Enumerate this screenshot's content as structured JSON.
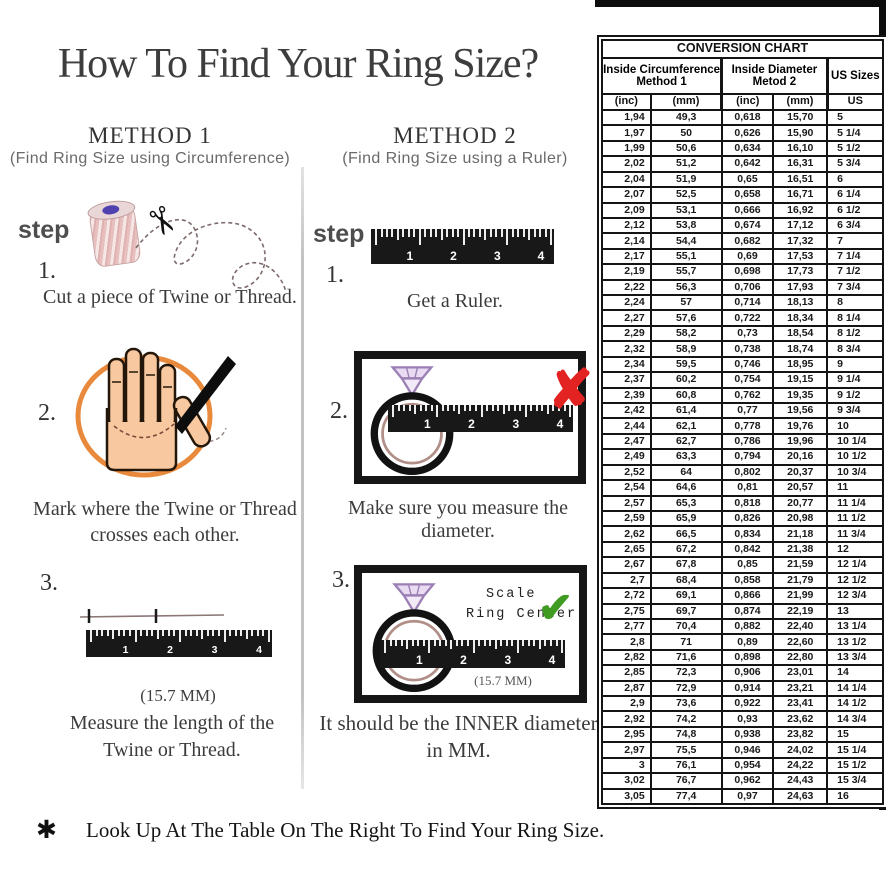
{
  "title": "How To Find Your Ring Size?",
  "method1": {
    "heading": "METHOD 1",
    "subheading": "(Find Ring Size using Circumference)",
    "step_label": "step",
    "step1_num": "1.",
    "step1_caption": "Cut a piece of  Twine or Thread.",
    "step2_num": "2.",
    "step2_caption_line1": "Mark where the Twine or Thread",
    "step2_caption_line2": "crosses each other.",
    "step3_num": "3.",
    "step3_measure": "(15.7 MM)",
    "step3_caption_line1": "Measure the length of the",
    "step3_caption_line2": "Twine or Thread."
  },
  "method2": {
    "heading": "METHOD 2",
    "subheading": "(Find Ring Size using a Ruler)",
    "step_label": "step",
    "step1_num": "1.",
    "step1_caption": "Get a Ruler.",
    "step2_num": "2.",
    "step2_caption": "Make sure you measure the diameter.",
    "step3_num": "3.",
    "step3_scale_line1": "Scale",
    "step3_scale_line2": "Ring Center",
    "step3_measure": "(15.7 MM)",
    "step3_caption_line1": "It should be the INNER diameter",
    "step3_caption_line2": "in MM."
  },
  "icons": {
    "scissors": "✂",
    "x_mark": "✘",
    "check_mark": "✔"
  },
  "ruler_numbers": [
    "1",
    "2",
    "3",
    "4"
  ],
  "footnote": {
    "bullet": "✱",
    "text": "Look Up At The Table On The Right To Find Your Ring Size."
  },
  "colors": {
    "accent_red": "#c0332e",
    "text_black": "#1a1a1a",
    "x_red": "#e32222",
    "check_green": "#3f9b22",
    "hand_skin": "#f8c9a0",
    "circle_orange": "#e8893c",
    "ring_inner": "#b18f88",
    "diamond_lavender": "#e9dcf2"
  },
  "conversion_chart": {
    "title": "CONVERSION CHART",
    "col_groups": [
      {
        "line1": "Inside Circumference",
        "line2": "Method 1"
      },
      {
        "line1": "Inside Diameter",
        "line2": "Metod 2"
      },
      {
        "line1": "US Sizes",
        "line2": ""
      }
    ],
    "sub_headers": [
      "(inc)",
      "(mm)",
      "(inc)",
      "(mm)",
      "US"
    ],
    "rows": [
      [
        "1,94",
        "49,3",
        "0,618",
        "15,70",
        "5"
      ],
      [
        "1,97",
        "50",
        "0,626",
        "15,90",
        "5 1/4"
      ],
      [
        "1,99",
        "50,6",
        "0,634",
        "16,10",
        "5 1/2"
      ],
      [
        "2,02",
        "51,2",
        "0,642",
        "16,31",
        "5 3/4"
      ],
      [
        "2,04",
        "51,9",
        "0,65",
        "16,51",
        "6"
      ],
      [
        "2,07",
        "52,5",
        "0,658",
        "16,71",
        "6 1/4"
      ],
      [
        "2,09",
        "53,1",
        "0,666",
        "16,92",
        "6 1/2"
      ],
      [
        "2,12",
        "53,8",
        "0,674",
        "17,12",
        "6 3/4"
      ],
      [
        "2,14",
        "54,4",
        "0,682",
        "17,32",
        "7"
      ],
      [
        "2,17",
        "55,1",
        "0,69",
        "17,53",
        "7 1/4"
      ],
      [
        "2,19",
        "55,7",
        "0,698",
        "17,73",
        "7 1/2"
      ],
      [
        "2,22",
        "56,3",
        "0,706",
        "17,93",
        "7 3/4"
      ],
      [
        "2,24",
        "57",
        "0,714",
        "18,13",
        "8"
      ],
      [
        "2,27",
        "57,6",
        "0,722",
        "18,34",
        "8 1/4"
      ],
      [
        "2,29",
        "58,2",
        "0,73",
        "18,54",
        "8 1/2"
      ],
      [
        "2,32",
        "58,9",
        "0,738",
        "18,74",
        "8 3/4"
      ],
      [
        "2,34",
        "59,5",
        "0,746",
        "18,95",
        "9"
      ],
      [
        "2,37",
        "60,2",
        "0,754",
        "19,15",
        "9 1/4"
      ],
      [
        "2,39",
        "60,8",
        "0,762",
        "19,35",
        "9 1/2"
      ],
      [
        "2,42",
        "61,4",
        "0,77",
        "19,56",
        "9 3/4"
      ],
      [
        "2,44",
        "62,1",
        "0,778",
        "19,76",
        "10"
      ],
      [
        "2,47",
        "62,7",
        "0,786",
        "19,96",
        "10 1/4"
      ],
      [
        "2,49",
        "63,3",
        "0,794",
        "20,16",
        "10 1/2"
      ],
      [
        "2,52",
        "64",
        "0,802",
        "20,37",
        "10 3/4"
      ],
      [
        "2,54",
        "64,6",
        "0,81",
        "20,57",
        "11"
      ],
      [
        "2,57",
        "65,3",
        "0,818",
        "20,77",
        "11 1/4"
      ],
      [
        "2,59",
        "65,9",
        "0,826",
        "20,98",
        "11 1/2"
      ],
      [
        "2,62",
        "66,5",
        "0,834",
        "21,18",
        "11 3/4"
      ],
      [
        "2,65",
        "67,2",
        "0,842",
        "21,38",
        "12"
      ],
      [
        "2,67",
        "67,8",
        "0,85",
        "21,59",
        "12 1/4"
      ],
      [
        "2,7",
        "68,4",
        "0,858",
        "21,79",
        "12 1/2"
      ],
      [
        "2,72",
        "69,1",
        "0,866",
        "21,99",
        "12 3/4"
      ],
      [
        "2,75",
        "69,7",
        "0,874",
        "22,19",
        "13"
      ],
      [
        "2,77",
        "70,4",
        "0,882",
        "22,40",
        "13 1/4"
      ],
      [
        "2,8",
        "71",
        "0,89",
        "22,60",
        "13 1/2"
      ],
      [
        "2,82",
        "71,6",
        "0,898",
        "22,80",
        "13 3/4"
      ],
      [
        "2,85",
        "72,3",
        "0,906",
        "23,01",
        "14"
      ],
      [
        "2,87",
        "72,9",
        "0,914",
        "23,21",
        "14 1/4"
      ],
      [
        "2,9",
        "73,6",
        "0,922",
        "23,41",
        "14 1/2"
      ],
      [
        "2,92",
        "74,2",
        "0,93",
        "23,62",
        "14 3/4"
      ],
      [
        "2,95",
        "74,8",
        "0,938",
        "23,82",
        "15"
      ],
      [
        "2,97",
        "75,5",
        "0,946",
        "24,02",
        "15 1/4"
      ],
      [
        "3",
        "76,1",
        "0,954",
        "24,22",
        "15 1/2"
      ],
      [
        "3,02",
        "76,7",
        "0,962",
        "24,43",
        "15 3/4"
      ],
      [
        "3,05",
        "77,4",
        "0,97",
        "24,63",
        "16"
      ]
    ]
  }
}
